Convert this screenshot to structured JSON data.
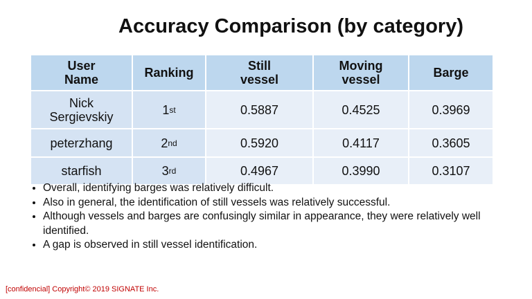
{
  "header": {
    "title": "Accuracy Comparison (by category)"
  },
  "table": {
    "columns": [
      "User Name",
      "Ranking",
      "Still vessel",
      "Moving vessel",
      "Barge"
    ],
    "rows": [
      {
        "user": "Nick Sergievskiy",
        "rank": {
          "number": "1",
          "suffix": "st"
        },
        "still": "0.5887",
        "moving": "0.4525",
        "barge": "0.3969"
      },
      {
        "user": "peterzhang",
        "rank": {
          "number": "2",
          "suffix": "nd"
        },
        "still": "0.5920",
        "moving": "0.4117",
        "barge": "0.3605"
      },
      {
        "user": "starfish",
        "rank": {
          "number": "3",
          "suffix": "rd"
        },
        "still": "0.4967",
        "moving": "0.3990",
        "barge": "0.3107"
      }
    ]
  },
  "bullets": [
    "Overall, identifying barges was relatively difficult.",
    "Also in general, the identification of still vessels was relatively successful.",
    "Although vessels and barges are confusingly similar in appearance, they were relatively well identified.",
    "A gap is observed in still vessel identification."
  ],
  "footer": "[confidencial] Copyright© 2019 SIGNATE Inc."
}
